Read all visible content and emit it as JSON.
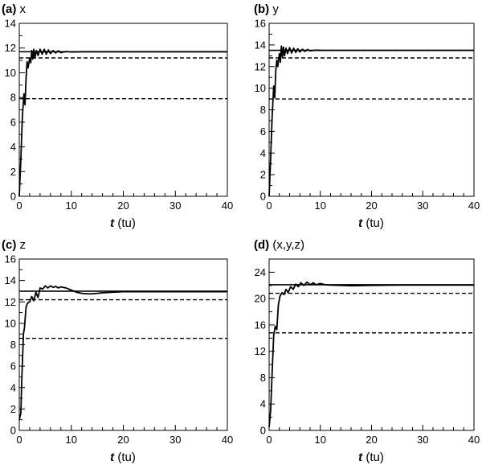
{
  "chart_data": [
    {
      "type": "line",
      "panel_label": "(a)",
      "panel_var": "x",
      "xlabel_var": "t",
      "xlabel_unit": "(tu)",
      "xlim": [
        0,
        40
      ],
      "ylim": [
        0,
        14
      ],
      "xticks": [
        "0",
        "10",
        "20",
        "30",
        "40"
      ],
      "yticks": [
        "0",
        "2",
        "4",
        "6",
        "8",
        "10",
        "12",
        "14"
      ],
      "hlines": [
        {
          "y": 11.7,
          "style": "solid"
        },
        {
          "y": 11.2,
          "style": "dashed"
        },
        {
          "y": 7.9,
          "style": "dashed"
        }
      ],
      "series": [
        {
          "values_x": [
            0,
            0.3,
            0.6,
            0.9,
            1.1,
            1.3,
            1.5,
            1.7,
            2.0,
            2.2,
            2.4,
            2.6,
            2.8,
            3.0,
            3.3,
            3.6,
            4.0,
            4.4,
            4.8,
            5.2,
            5.6,
            6.0,
            6.5,
            7.0,
            7.5,
            8.0,
            9.0,
            10,
            12,
            15,
            20,
            25,
            30,
            35,
            40
          ],
          "values_y": [
            0,
            3.0,
            6.5,
            8.3,
            7.4,
            9.5,
            10.9,
            10.4,
            11.2,
            10.8,
            11.8,
            11.1,
            11.9,
            11.2,
            11.8,
            11.4,
            11.9,
            11.5,
            11.9,
            11.5,
            11.85,
            11.55,
            11.8,
            11.6,
            11.78,
            11.62,
            11.72,
            11.68,
            11.7,
            11.7,
            11.7,
            11.7,
            11.7,
            11.7,
            11.7
          ]
        }
      ]
    },
    {
      "type": "line",
      "panel_label": "(b)",
      "panel_var": "y",
      "xlabel_var": "t",
      "xlabel_unit": "(tu)",
      "xlim": [
        0,
        40
      ],
      "ylim": [
        0,
        16
      ],
      "xticks": [
        "0",
        "10",
        "20",
        "30",
        "40"
      ],
      "yticks": [
        "0",
        "2",
        "4",
        "6",
        "8",
        "10",
        "12",
        "14",
        "16"
      ],
      "hlines": [
        {
          "y": 13.5,
          "style": "solid"
        },
        {
          "y": 12.8,
          "style": "dashed"
        },
        {
          "y": 9.0,
          "style": "dashed"
        }
      ],
      "series": [
        {
          "values_x": [
            0,
            0.3,
            0.6,
            0.9,
            1.1,
            1.3,
            1.5,
            1.7,
            2.0,
            2.2,
            2.4,
            2.6,
            2.8,
            3.0,
            3.3,
            3.6,
            4.0,
            4.4,
            4.8,
            5.2,
            5.6,
            6.0,
            6.5,
            7.0,
            7.5,
            8.0,
            9.0,
            10,
            12,
            15,
            20,
            25,
            30,
            35,
            40
          ],
          "values_y": [
            0,
            3.5,
            7.5,
            10.2,
            9.1,
            11.6,
            12.6,
            12.0,
            13.2,
            12.4,
            13.9,
            12.9,
            13.8,
            13.0,
            13.7,
            13.2,
            13.75,
            13.25,
            13.7,
            13.3,
            13.65,
            13.35,
            13.6,
            13.4,
            13.58,
            13.45,
            13.52,
            13.5,
            13.5,
            13.5,
            13.5,
            13.5,
            13.5,
            13.5,
            13.5
          ]
        }
      ]
    },
    {
      "type": "line",
      "panel_label": "(c)",
      "panel_var": "z",
      "xlabel_var": "t",
      "xlabel_unit": "(tu)",
      "xlim": [
        0,
        40
      ],
      "ylim": [
        0,
        16
      ],
      "xticks": [
        "0",
        "10",
        "20",
        "30",
        "40"
      ],
      "yticks": [
        "0",
        "2",
        "4",
        "6",
        "8",
        "10",
        "12",
        "14",
        "16"
      ],
      "hlines": [
        {
          "y": 13.0,
          "style": "solid"
        },
        {
          "y": 12.2,
          "style": "dashed"
        },
        {
          "y": 8.6,
          "style": "dashed"
        }
      ],
      "series": [
        {
          "values_x": [
            0,
            0.3,
            0.5,
            0.8,
            1.0,
            1.3,
            1.6,
            2.0,
            2.4,
            2.8,
            3.2,
            3.6,
            4.0,
            4.5,
            5.0,
            5.5,
            6.0,
            6.5,
            7.0,
            7.5,
            8.0,
            9.0,
            10,
            11,
            12,
            13,
            14,
            15,
            16,
            18,
            20,
            22,
            25,
            30,
            35,
            40
          ],
          "values_y": [
            1.0,
            1.6,
            5.0,
            9.0,
            9.6,
            11.5,
            11.9,
            12.0,
            12.5,
            12.1,
            12.9,
            12.4,
            13.3,
            13.2,
            13.5,
            13.3,
            13.5,
            13.35,
            13.45,
            13.3,
            13.4,
            13.3,
            13.1,
            12.9,
            12.8,
            12.75,
            12.75,
            12.8,
            12.85,
            12.9,
            12.95,
            12.95,
            12.95,
            12.95,
            12.95,
            12.95
          ]
        }
      ]
    },
    {
      "type": "line",
      "panel_label": "(d)",
      "panel_var": "(x,y,z)",
      "xlabel_var": "t",
      "xlabel_unit": "(tu)",
      "xlim": [
        0,
        40
      ],
      "ylim": [
        0,
        26
      ],
      "xticks": [
        "0",
        "10",
        "20",
        "30",
        "40"
      ],
      "yticks": [
        "0",
        "4",
        "8",
        "12",
        "16",
        "20",
        "24"
      ],
      "hlines": [
        {
          "y": 22.1,
          "style": "solid"
        },
        {
          "y": 20.8,
          "style": "dashed"
        },
        {
          "y": 14.8,
          "style": "dashed"
        }
      ],
      "series": [
        {
          "values_x": [
            0,
            0.3,
            0.6,
            0.9,
            1.2,
            1.5,
            1.8,
            2.1,
            2.5,
            2.9,
            3.3,
            3.7,
            4.2,
            4.7,
            5.2,
            5.7,
            6.2,
            6.8,
            7.4,
            8.0,
            8.6,
            9.2,
            10,
            11,
            12,
            14,
            16,
            20,
            25,
            30,
            35,
            40
          ],
          "values_y": [
            0.5,
            3.0,
            9.0,
            14.5,
            15.8,
            15.3,
            19.0,
            20.3,
            20.9,
            20.6,
            21.4,
            20.9,
            21.8,
            21.4,
            22.2,
            21.8,
            22.4,
            22.0,
            22.5,
            22.1,
            22.4,
            22.1,
            22.3,
            22.1,
            22.05,
            22.0,
            21.95,
            22.0,
            22.05,
            22.05,
            22.05,
            22.05
          ]
        }
      ]
    }
  ]
}
